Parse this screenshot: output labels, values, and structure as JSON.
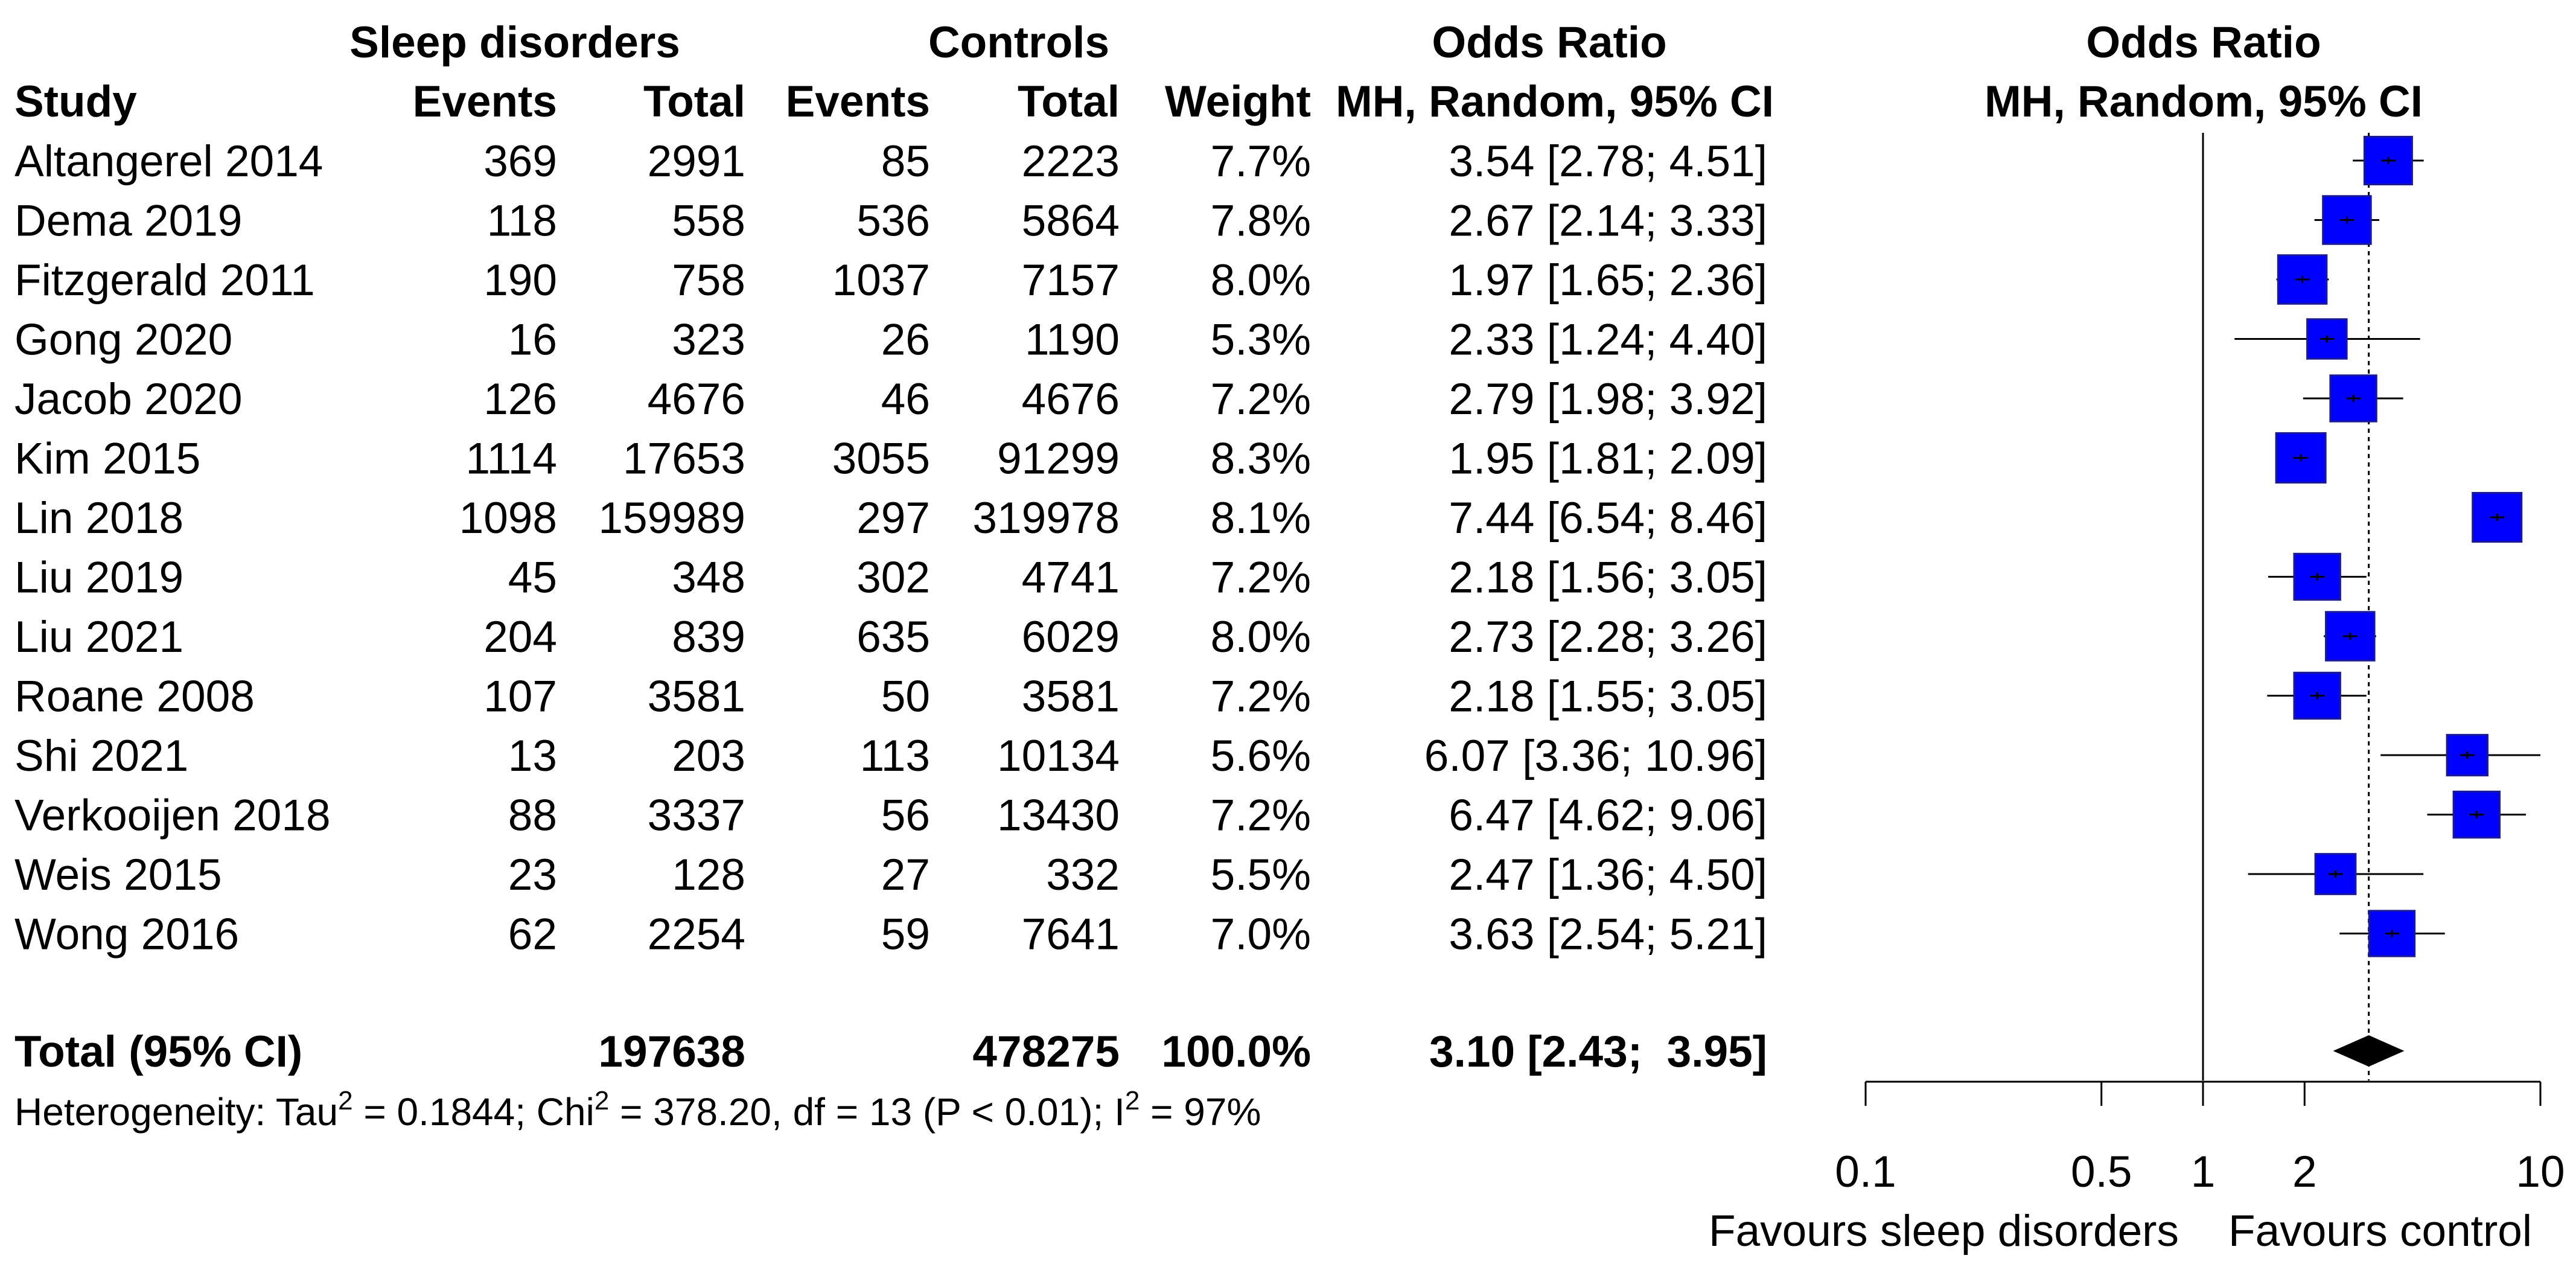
{
  "header": {
    "group1": "Sleep disorders",
    "group2": "Controls",
    "or_text": "Odds Ratio",
    "or_plot": "Odds Ratio",
    "study": "Study",
    "events1": "Events",
    "total1": "Total",
    "events2": "Events",
    "total2": "Total",
    "weight": "Weight",
    "method_text": "MH, Random, 95% CI",
    "method_plot": "MH, Random, 95% CI"
  },
  "studies": [
    {
      "study": "Altangerel 2014",
      "events1": "369",
      "total1": "2991",
      "events2": "85",
      "total2": "2223",
      "weight": "7.7%",
      "ci_text": "3.54 [2.78;  4.51]",
      "or": 3.54,
      "lo": 2.78,
      "hi": 4.51,
      "w": 7.7
    },
    {
      "study": "Dema 2019",
      "events1": "118",
      "total1": "558",
      "events2": "536",
      "total2": "5864",
      "weight": "7.8%",
      "ci_text": "2.67 [2.14;  3.33]",
      "or": 2.67,
      "lo": 2.14,
      "hi": 3.33,
      "w": 7.8
    },
    {
      "study": "Fitzgerald 2011",
      "events1": "190",
      "total1": "758",
      "events2": "1037",
      "total2": "7157",
      "weight": "8.0%",
      "ci_text": "1.97 [1.65;  2.36]",
      "or": 1.97,
      "lo": 1.65,
      "hi": 2.36,
      "w": 8.0
    },
    {
      "study": "Gong 2020",
      "events1": "16",
      "total1": "323",
      "events2": "26",
      "total2": "1190",
      "weight": "5.3%",
      "ci_text": "2.33 [1.24;  4.40]",
      "or": 2.33,
      "lo": 1.24,
      "hi": 4.4,
      "w": 5.3
    },
    {
      "study": "Jacob 2020",
      "events1": "126",
      "total1": "4676",
      "events2": "46",
      "total2": "4676",
      "weight": "7.2%",
      "ci_text": "2.79 [1.98;  3.92]",
      "or": 2.79,
      "lo": 1.98,
      "hi": 3.92,
      "w": 7.2
    },
    {
      "study": "Kim 2015",
      "events1": "1114",
      "total1": "17653",
      "events2": "3055",
      "total2": "91299",
      "weight": "8.3%",
      "ci_text": "1.95 [1.81;  2.09]",
      "or": 1.95,
      "lo": 1.81,
      "hi": 2.09,
      "w": 8.3
    },
    {
      "study": "Lin 2018",
      "events1": "1098",
      "total1": "159989",
      "events2": "297",
      "total2": "319978",
      "weight": "8.1%",
      "ci_text": "7.44 [6.54;  8.46]",
      "or": 7.44,
      "lo": 6.54,
      "hi": 8.46,
      "w": 8.1
    },
    {
      "study": "Liu 2019",
      "events1": "45",
      "total1": "348",
      "events2": "302",
      "total2": "4741",
      "weight": "7.2%",
      "ci_text": "2.18 [1.56;  3.05]",
      "or": 2.18,
      "lo": 1.56,
      "hi": 3.05,
      "w": 7.2
    },
    {
      "study": "Liu 2021",
      "events1": "204",
      "total1": "839",
      "events2": "635",
      "total2": "6029",
      "weight": "8.0%",
      "ci_text": "2.73 [2.28;  3.26]",
      "or": 2.73,
      "lo": 2.28,
      "hi": 3.26,
      "w": 8.0
    },
    {
      "study": "Roane 2008",
      "events1": "107",
      "total1": "3581",
      "events2": "50",
      "total2": "3581",
      "weight": "7.2%",
      "ci_text": "2.18 [1.55;  3.05]",
      "or": 2.18,
      "lo": 1.55,
      "hi": 3.05,
      "w": 7.2
    },
    {
      "study": "Shi 2021",
      "events1": "13",
      "total1": "203",
      "events2": "113",
      "total2": "10134",
      "weight": "5.6%",
      "ci_text": "6.07 [3.36; 10.96]",
      "or": 6.07,
      "lo": 3.36,
      "hi": 10.96,
      "w": 5.6
    },
    {
      "study": "Verkooijen 2018",
      "events1": "88",
      "total1": "3337",
      "events2": "56",
      "total2": "13430",
      "weight": "7.2%",
      "ci_text": "6.47 [4.62;  9.06]",
      "or": 6.47,
      "lo": 4.62,
      "hi": 9.06,
      "w": 7.2
    },
    {
      "study": "Weis 2015",
      "events1": "23",
      "total1": "128",
      "events2": "27",
      "total2": "332",
      "weight": "5.5%",
      "ci_text": "2.47 [1.36;  4.50]",
      "or": 2.47,
      "lo": 1.36,
      "hi": 4.5,
      "w": 5.5
    },
    {
      "study": "Wong 2016",
      "events1": "62",
      "total1": "2254",
      "events2": "59",
      "total2": "7641",
      "weight": "7.0%",
      "ci_text": "3.63 [2.54;  5.21]",
      "or": 3.63,
      "lo": 2.54,
      "hi": 5.21,
      "w": 7.0
    }
  ],
  "total": {
    "label": "Total (95% CI)",
    "total1": "197638",
    "total2": "478275",
    "weight": "100.0%",
    "ci_text": "3.10 [2.43;  3.95]",
    "or": 3.1,
    "lo": 2.43,
    "hi": 3.95
  },
  "heterogeneity": {
    "p1": "Heterogeneity: Tau",
    "s1": "2",
    "p2": " = 0.1844; Chi",
    "s2": "2",
    "p3": " = 378.20, df = 13 (P < 0.01); I",
    "s3": "2",
    "p4": " = 97%"
  },
  "axis": {
    "ticks": [
      0.1,
      0.5,
      1,
      2,
      10
    ],
    "tick_labels": [
      "0.1",
      "0.5",
      "1",
      "2",
      "10"
    ],
    "xlim": [
      0.1,
      10
    ],
    "scale": "log",
    "reference_line": 1,
    "summary_line": 3.1,
    "left_label": "Favours sleep disorders",
    "right_label": "Favours control"
  },
  "colors": {
    "square": "#0000ff",
    "square_edge": "#1a1a99",
    "diamond": "#000000",
    "line": "#000000"
  },
  "chart_data": {
    "type": "scatter",
    "title": "Odds Ratio",
    "xlabel": "",
    "ylabel": "",
    "x_scale": "log",
    "xlim": [
      0.1,
      10
    ],
    "categories": [
      "Altangerel 2014",
      "Dema 2019",
      "Fitzgerald 2011",
      "Gong 2020",
      "Jacob 2020",
      "Kim 2015",
      "Lin 2018",
      "Liu 2019",
      "Liu 2021",
      "Roane 2008",
      "Shi 2021",
      "Verkooijen 2018",
      "Weis 2015",
      "Wong 2016"
    ],
    "series": [
      {
        "values": [
          3.54,
          2.67,
          1.97,
          2.33,
          2.79,
          1.95,
          7.44,
          2.18,
          2.73,
          2.18,
          6.07,
          6.47,
          2.47,
          3.63
        ]
      }
    ],
    "ci_lower": [
      2.78,
      2.14,
      1.65,
      1.24,
      1.98,
      1.81,
      6.54,
      1.56,
      2.28,
      1.55,
      3.36,
      4.62,
      1.36,
      2.54
    ],
    "ci_upper": [
      4.51,
      3.33,
      2.36,
      4.4,
      3.92,
      2.09,
      8.46,
      3.05,
      3.26,
      3.05,
      10.96,
      9.06,
      4.5,
      5.21
    ],
    "weights": [
      7.7,
      7.8,
      8.0,
      5.3,
      7.2,
      8.3,
      8.1,
      7.2,
      8.0,
      7.2,
      5.6,
      7.2,
      5.5,
      7.0
    ],
    "pooled": {
      "value": 3.1,
      "lower": 2.43,
      "upper": 3.95
    },
    "ticks": [
      0.1,
      0.5,
      1,
      2,
      10
    ]
  }
}
